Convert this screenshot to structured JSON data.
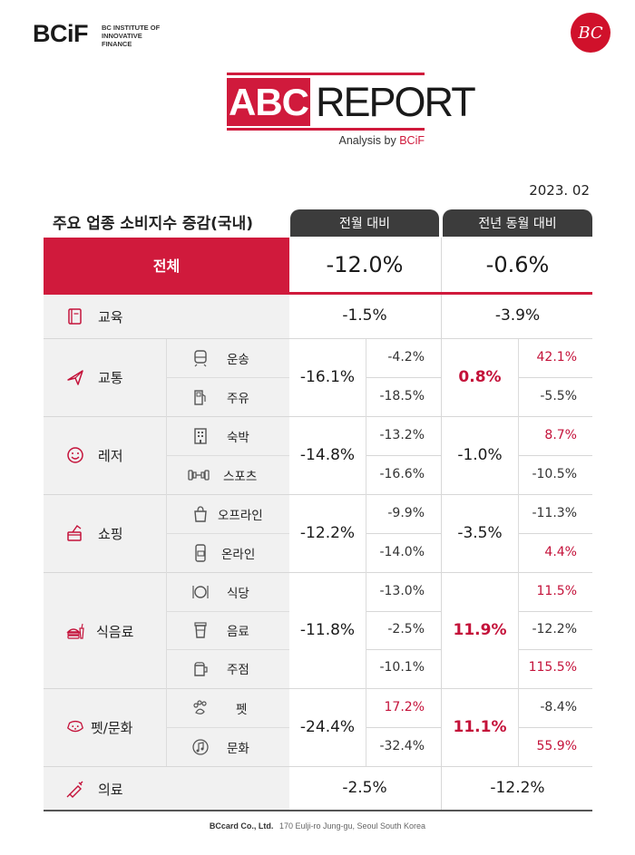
{
  "header": {
    "brand": "BCiF",
    "brand_sub": "BC INSTITUTE OF INNOVATIVE FINANCE",
    "badge": "BC",
    "title_left": "ABC",
    "title_right": "REPORT",
    "subtitle_prefix": "Analysis by ",
    "subtitle_brand": "BCiF"
  },
  "date": "2023. 02",
  "table": {
    "title": "주요 업종 소비지수 증감(국내)",
    "col_mom": "전월 대비",
    "col_yoy": "전년 동월 대비",
    "total": {
      "label": "전체",
      "mom": "-12.0%",
      "yoy": "-0.6%"
    },
    "education": {
      "label": "교육",
      "icon": "book-icon",
      "mom": "-1.5%",
      "yoy": "-3.9%"
    },
    "transport": {
      "label": "교통",
      "icon": "airplane-icon",
      "mom": "-16.1%",
      "yoy": "0.8%",
      "subs": [
        {
          "label": "운송",
          "icon": "train-icon",
          "mom": "-4.2%",
          "yoy": "42.1%"
        },
        {
          "label": "주유",
          "icon": "fuel-pump-icon",
          "mom": "-18.5%",
          "yoy": "-5.5%"
        }
      ]
    },
    "leisure": {
      "label": "레저",
      "icon": "smile-icon",
      "mom": "-14.8%",
      "yoy": "-1.0%",
      "subs": [
        {
          "label": "숙박",
          "icon": "building-icon",
          "mom": "-13.2%",
          "yoy": "8.7%"
        },
        {
          "label": "스포츠",
          "icon": "dumbbell-icon",
          "mom": "-16.6%",
          "yoy": "-10.5%"
        }
      ]
    },
    "shopping": {
      "label": "쇼핑",
      "icon": "card-hand-icon",
      "mom": "-12.2%",
      "yoy": "-3.5%",
      "subs": [
        {
          "label": "오프라인",
          "icon": "shopping-bag-icon",
          "mom": "-9.9%",
          "yoy": "-11.3%"
        },
        {
          "label": "온라인",
          "icon": "phone-card-icon",
          "mom": "-14.0%",
          "yoy": "4.4%"
        }
      ]
    },
    "food": {
      "label": "식음료",
      "icon": "burger-drink-icon",
      "mom": "-11.8%",
      "yoy": "11.9%",
      "subs": [
        {
          "label": "식당",
          "icon": "plate-icon",
          "mom": "-13.0%",
          "yoy": "11.5%"
        },
        {
          "label": "음료",
          "icon": "coffee-cup-icon",
          "mom": "-2.5%",
          "yoy": "-12.2%"
        },
        {
          "label": "주점",
          "icon": "beer-icon",
          "mom": "-10.1%",
          "yoy": "115.5%"
        }
      ]
    },
    "pet_culture": {
      "label": "펫/문화",
      "icon": "dog-icon",
      "mom": "-24.4%",
      "yoy": "11.1%",
      "subs": [
        {
          "label": "펫",
          "icon": "paw-icon",
          "mom": "17.2%",
          "yoy": "-8.4%"
        },
        {
          "label": "문화",
          "icon": "music-icon",
          "mom": "-32.4%",
          "yoy": "55.9%"
        }
      ]
    },
    "medical": {
      "label": "의료",
      "icon": "syringe-icon",
      "mom": "-2.5%",
      "yoy": "-12.2%"
    }
  },
  "footer": {
    "company": "BCcard Co., Ltd.",
    "address": "170 Eulji-ro Jung-gu, Seoul South Korea"
  },
  "colors": {
    "accent": "#d01a3c",
    "positive": "#c4123a",
    "header_dark": "#3c3c3c",
    "panel": "#f1f1f1"
  }
}
